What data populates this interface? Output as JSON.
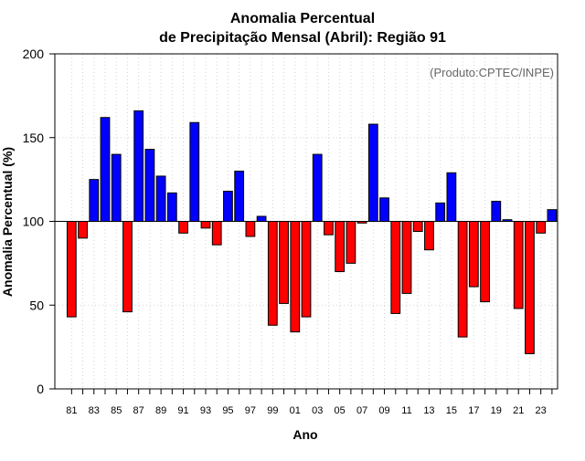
{
  "chart_data": {
    "type": "bar",
    "title_line1": "Anomalia Percentual",
    "title_line2": "de Precipitação Mensal (Abril): Região 91",
    "xlabel": "Ano",
    "ylabel": "Anomalia Percentual (%)",
    "source": "(Produto:CPTEC/INPE)",
    "baseline": 100,
    "ylim": [
      0,
      200
    ],
    "yticks": [
      0,
      50,
      100,
      150,
      200
    ],
    "xlim": [
      1979.5,
      2024.5
    ],
    "above_color": "#0000ff",
    "below_color": "#ff0000",
    "grid": true,
    "years": [
      1981,
      1982,
      1983,
      1984,
      1985,
      1986,
      1987,
      1988,
      1989,
      1990,
      1991,
      1992,
      1993,
      1994,
      1995,
      1996,
      1997,
      1998,
      1999,
      2000,
      2001,
      2002,
      2003,
      2004,
      2005,
      2006,
      2007,
      2008,
      2009,
      2010,
      2011,
      2012,
      2013,
      2014,
      2015,
      2016,
      2017,
      2018,
      2019,
      2020,
      2021,
      2022,
      2023,
      2024
    ],
    "values": [
      43,
      90,
      125,
      162,
      140,
      46,
      166,
      143,
      127,
      117,
      93,
      159,
      96,
      86,
      118,
      130,
      91,
      103,
      38,
      51,
      34,
      43,
      140,
      92,
      70,
      75,
      99,
      158,
      114,
      45,
      57,
      94,
      83,
      111,
      129,
      31,
      61,
      52,
      112,
      101,
      48,
      21,
      93,
      107
    ],
    "xtick_labels": [
      {
        "year": 1981,
        "label": "81"
      },
      {
        "year": 1983,
        "label": "83"
      },
      {
        "year": 1985,
        "label": "85"
      },
      {
        "year": 1987,
        "label": "87"
      },
      {
        "year": 1989,
        "label": "89"
      },
      {
        "year": 1991,
        "label": "91"
      },
      {
        "year": 1993,
        "label": "93"
      },
      {
        "year": 1995,
        "label": "95"
      },
      {
        "year": 1997,
        "label": "97"
      },
      {
        "year": 1999,
        "label": "99"
      },
      {
        "year": 2001,
        "label": "01"
      },
      {
        "year": 2003,
        "label": "03"
      },
      {
        "year": 2005,
        "label": "05"
      },
      {
        "year": 2007,
        "label": "07"
      },
      {
        "year": 2009,
        "label": "09"
      },
      {
        "year": 2011,
        "label": "11"
      },
      {
        "year": 2013,
        "label": "13"
      },
      {
        "year": 2015,
        "label": "15"
      },
      {
        "year": 2017,
        "label": "17"
      },
      {
        "year": 2019,
        "label": "19"
      },
      {
        "year": 2021,
        "label": "21"
      },
      {
        "year": 2023,
        "label": "23"
      }
    ]
  }
}
